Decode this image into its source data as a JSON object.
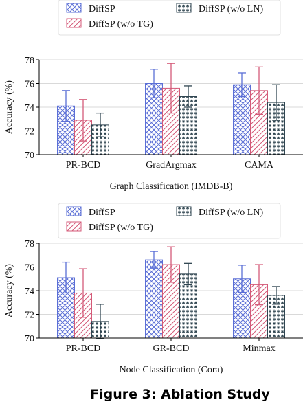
{
  "chart_data": [
    {
      "type": "bar",
      "xlabel": "Graph Classification (IMDB-B)",
      "ylabel": "Accuracy (%)",
      "ylim": [
        70,
        78
      ],
      "yticks": [
        70,
        72,
        74,
        76,
        78
      ],
      "grid": "y",
      "legend": "top",
      "categories": [
        "PR-BCD",
        "GradArgmax",
        "CAMA"
      ],
      "series": [
        {
          "name": "DiffSP",
          "values": [
            74.1,
            76.0,
            75.9
          ],
          "errors": [
            1.3,
            1.2,
            1.0
          ],
          "color": "#5b6fd6",
          "pattern": "crosshatch"
        },
        {
          "name": "DiffSP (w/o TG)",
          "values": [
            72.9,
            75.6,
            75.4
          ],
          "errors": [
            1.75,
            2.1,
            2.0
          ],
          "color": "#d45a78",
          "pattern": "diagonal"
        },
        {
          "name": "DiffSP (w/o LN)",
          "values": [
            72.5,
            74.9,
            74.4
          ],
          "errors": [
            1.0,
            0.9,
            1.5
          ],
          "color": "#2f4550",
          "pattern": "stars"
        }
      ]
    },
    {
      "type": "bar",
      "xlabel": "Node Classification (Cora)",
      "ylabel": "Accuracy (%)",
      "ylim": [
        70,
        78
      ],
      "yticks": [
        70,
        72,
        74,
        76,
        78
      ],
      "grid": "y",
      "legend": "top",
      "categories": [
        "PR-BCD",
        "GR-BCD",
        "Minmax"
      ],
      "series": [
        {
          "name": "DiffSP",
          "values": [
            75.1,
            76.6,
            75.0
          ],
          "errors": [
            1.3,
            0.7,
            1.15
          ],
          "color": "#5b6fd6",
          "pattern": "crosshatch"
        },
        {
          "name": "DiffSP (w/o TG)",
          "values": [
            73.8,
            76.2,
            74.5
          ],
          "errors": [
            2.05,
            1.5,
            1.7
          ],
          "color": "#d45a78",
          "pattern": "diagonal"
        },
        {
          "name": "DiffSP (w/o LN)",
          "values": [
            71.4,
            75.4,
            73.6
          ],
          "errors": [
            1.45,
            0.9,
            0.75
          ],
          "color": "#2f4550",
          "pattern": "stars"
        }
      ]
    }
  ],
  "caption": "Figure 3: Ablation Study"
}
